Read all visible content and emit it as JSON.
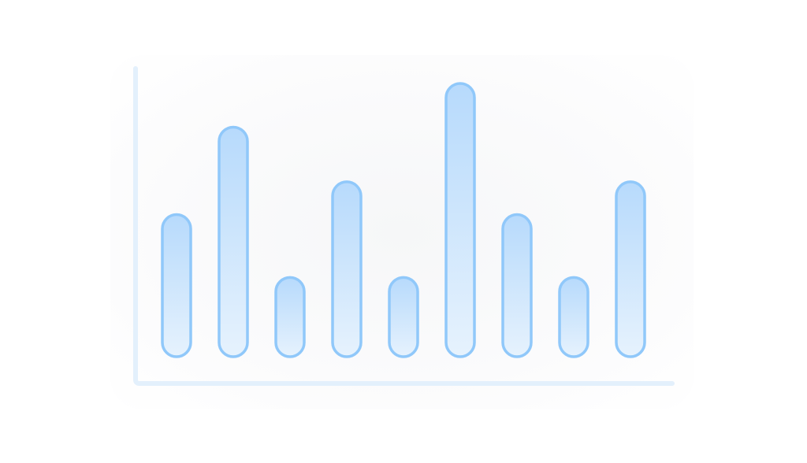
{
  "chart_data": {
    "type": "bar",
    "title": "",
    "xlabel": "",
    "ylabel": "",
    "categories": [
      "",
      "",
      "",
      "",
      "",
      "",
      "",
      "",
      ""
    ],
    "values": [
      52,
      84,
      29,
      64,
      29,
      100,
      52,
      29,
      64
    ],
    "ylim": [
      0,
      100
    ],
    "grid": false,
    "legend": "none",
    "colors": {
      "bar_stroke": "#90c8fa",
      "bar_fill_top": "#b7dafc",
      "bar_fill_bottom": "#e6f2fd",
      "axis": "#e3f0fc"
    }
  }
}
